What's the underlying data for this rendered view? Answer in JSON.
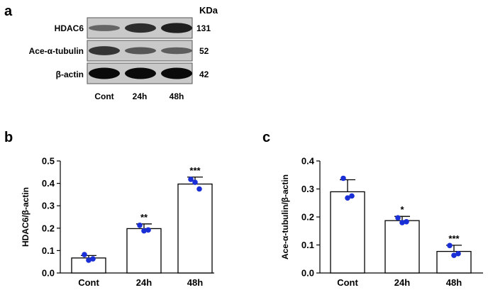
{
  "panel_labels": {
    "a": "a",
    "b": "b",
    "c": "c"
  },
  "blot": {
    "unit_header": "KDa",
    "rows": [
      {
        "label": "HDAC6",
        "kda": "131",
        "intensity": [
          0.35,
          0.75,
          0.85
        ]
      },
      {
        "label": "Ace-α-tubulin",
        "kda": "52",
        "intensity": [
          0.7,
          0.45,
          0.4
        ]
      },
      {
        "label": "β-actin",
        "kda": "42",
        "intensity": [
          1.0,
          1.0,
          1.0
        ]
      }
    ],
    "lanes": [
      "Cont",
      "24h",
      "48h"
    ]
  },
  "chart_data": [
    {
      "type": "bar",
      "categories": [
        "Cont",
        "24h",
        "48h"
      ],
      "values": [
        0.067,
        0.198,
        0.397
      ],
      "errors": [
        0.011,
        0.021,
        0.031
      ],
      "points": [
        [
          0.082,
          0.063,
          0.057
        ],
        [
          0.213,
          0.192,
          0.188
        ],
        [
          0.418,
          0.375,
          0.405
        ]
      ],
      "significance": [
        "",
        "**",
        "***"
      ],
      "ylabel": "HDAC6/β-actin",
      "xlabel": "",
      "ylim": [
        0,
        0.5
      ],
      "yticks": [
        "0.0",
        "0.1",
        "0.2",
        "0.3",
        "0.4",
        "0.5"
      ],
      "point_color": "#1a2fd6"
    },
    {
      "type": "bar",
      "categories": [
        "Cont",
        "24h",
        "48h"
      ],
      "values": [
        0.29,
        0.187,
        0.077
      ],
      "errors": [
        0.043,
        0.015,
        0.022
      ],
      "points": [
        [
          0.338,
          0.275,
          0.268
        ],
        [
          0.197,
          0.183,
          0.18
        ],
        [
          0.098,
          0.069,
          0.063
        ]
      ],
      "significance": [
        "",
        "*",
        "***"
      ],
      "ylabel": "Ace-α-tubulin/β-actin",
      "xlabel": "",
      "ylim": [
        0,
        0.4
      ],
      "yticks": [
        "0.0",
        "0.1",
        "0.2",
        "0.3",
        "0.4"
      ],
      "point_color": "#1a2fd6"
    }
  ]
}
